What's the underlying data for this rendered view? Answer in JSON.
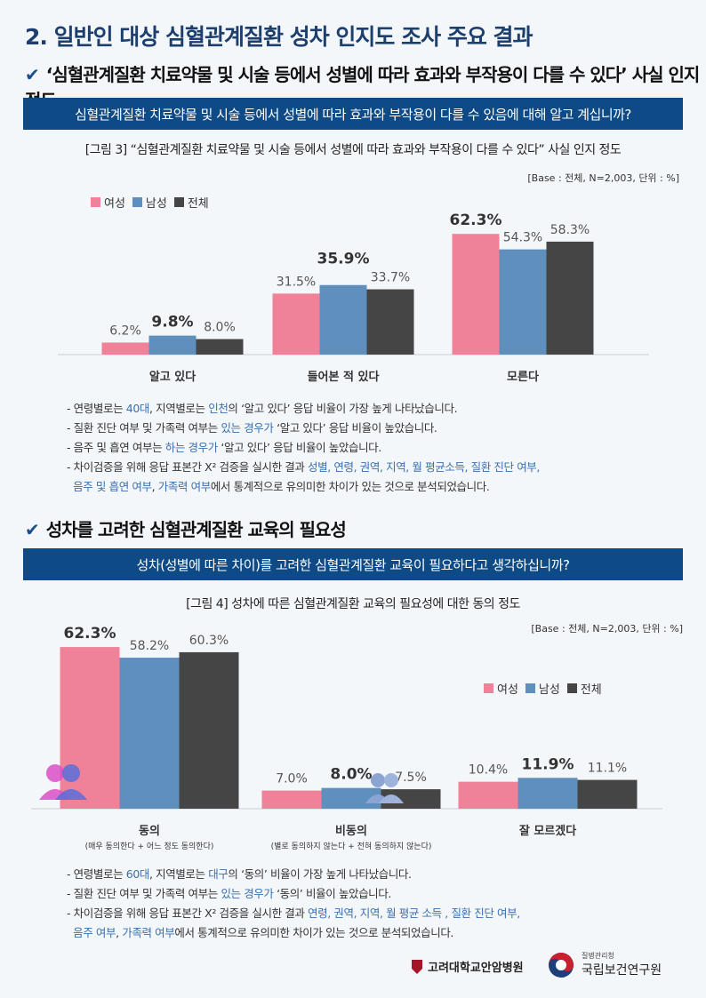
{
  "page_title": "2. 일반인 대상 심혈관계질환 성차 인지도 조사 주요 결과",
  "section1": {
    "heading": "‘심혈관계질환 치료약물 및 시술 등에서 성별에 따라 효과와 부작용이 다를 수 있다’ 사실 인지 정도",
    "question": "심혈관계질환 치료약물 및 시술 등에서 성별에 따라 효과와 부작용이 다를 수 있음에 대해 알고 계십니까?",
    "figure_title": "[그림 3] “심혈관계질환 치료약물 및 시술 등에서 성별에 따라 효과와 부작용이 다를 수 있다” 사실 인지 정도",
    "base": "[Base : 전체, N=2,003, 단위 : %]",
    "bullets": [
      [
        {
          "t": "- 연령별로는 "
        },
        {
          "t": "40대",
          "hl": true
        },
        {
          "t": ", 지역별로는 "
        },
        {
          "t": "인천",
          "hl": true
        },
        {
          "t": "의 ‘알고 있다’ 응답 비율이 가장 높게 나타났습니다."
        }
      ],
      [
        {
          "t": "- 질환 진단 여부 및 가족력 여부는 "
        },
        {
          "t": "있는 경우가",
          "hl": true
        },
        {
          "t": " ‘알고 있다’ 응답 비율이 높았습니다."
        }
      ],
      [
        {
          "t": "- 음주 및 흡연 여부는 "
        },
        {
          "t": "하는 경우가",
          "hl": true
        },
        {
          "t": " ‘알고 있다’ 응답 비율이 높았습니다."
        }
      ],
      [
        {
          "t": "- 차이검증을 위해 응답 표본간 X² 검증을 실시한 결과 "
        },
        {
          "t": "성별, 연령, 권역, 지역, 월 평균소득, 질환 진단 여부,",
          "hl": true
        }
      ],
      [
        {
          "t": "  "
        },
        {
          "t": "음주 및 흡연 여부",
          "hl": true
        },
        {
          "t": ", "
        },
        {
          "t": "가족력 여부",
          "hl": true
        },
        {
          "t": "에서 통계적으로 유의미한 차이가 있는 것으로 분석되었습니다."
        }
      ]
    ]
  },
  "section2": {
    "heading": "성차를 고려한 심혈관계질환 교육의 필요성",
    "question": "성차(성별에 따른 차이)를 고려한 심혈관계질환 교육이 필요하다고 생각하십니까?",
    "figure_title": "[그림 4] 성차에 따른 심혈관계질환 교육의 필요성에 대한 동의 정도",
    "base": "[Base : 전체, N=2,003, 단위 : %]",
    "sublabels": [
      "(매우 동의한다 + 어느 정도 동의한다)",
      "(별로 동의하지 않는다 + 전혀 동의하지 않는다)",
      ""
    ],
    "bullets": [
      [
        {
          "t": "- 연령별로는 "
        },
        {
          "t": "60대",
          "hl": true
        },
        {
          "t": ", 지역별로는 "
        },
        {
          "t": "대구",
          "hl": true
        },
        {
          "t": "의 ‘동의’ 비율이 가장 높게 나타났습니다."
        }
      ],
      [
        {
          "t": "- 질환 진단 여부 및 가족력 여부는 "
        },
        {
          "t": "있는 경우가",
          "hl": true
        },
        {
          "t": " ‘동의’ 비율이 높았습니다."
        }
      ],
      [
        {
          "t": "- 차이검증을 위해 응답 표본간 X² 검증을 실시한 결과 "
        },
        {
          "t": "연령, 권역, 지역, 월 평균 소득 , 질환 진단 여부,",
          "hl": true
        }
      ],
      [
        {
          "t": "  "
        },
        {
          "t": "음주 여부",
          "hl": true
        },
        {
          "t": ", "
        },
        {
          "t": "가족력 여부",
          "hl": true
        },
        {
          "t": "에서 통계적으로 유의미한 차이가 있는 것으로 분석되었습니다."
        }
      ]
    ]
  },
  "logos": {
    "hospital": "고려대학교안암병원",
    "agency_small": "질병관리청",
    "agency": "국립보건연구원"
  },
  "colors": {
    "female": "#ef8298",
    "male": "#5e8fbd",
    "total": "#454545",
    "header": "#0d4a86",
    "highlight": "#3b6fae"
  },
  "chart_data": [
    {
      "type": "bar",
      "categories": [
        "알고 있다",
        "들어본 적 있다",
        "모른다"
      ],
      "series": [
        {
          "name": "여성",
          "values": [
            6.2,
            31.5,
            62.3
          ]
        },
        {
          "name": "남성",
          "values": [
            9.8,
            35.9,
            54.3
          ]
        },
        {
          "name": "전체",
          "values": [
            8.0,
            33.7,
            58.3
          ]
        }
      ],
      "legend": "top-left",
      "ylim": [
        0,
        70
      ]
    },
    {
      "type": "bar",
      "categories": [
        "동의",
        "비동의",
        "잘 모르겠다"
      ],
      "series": [
        {
          "name": "여성",
          "values": [
            62.3,
            7.0,
            10.4
          ]
        },
        {
          "name": "남성",
          "values": [
            58.2,
            8.0,
            11.9
          ]
        },
        {
          "name": "전체",
          "values": [
            60.3,
            7.5,
            11.1
          ]
        }
      ],
      "legend": "top-right",
      "ylim": [
        0,
        70
      ]
    }
  ]
}
